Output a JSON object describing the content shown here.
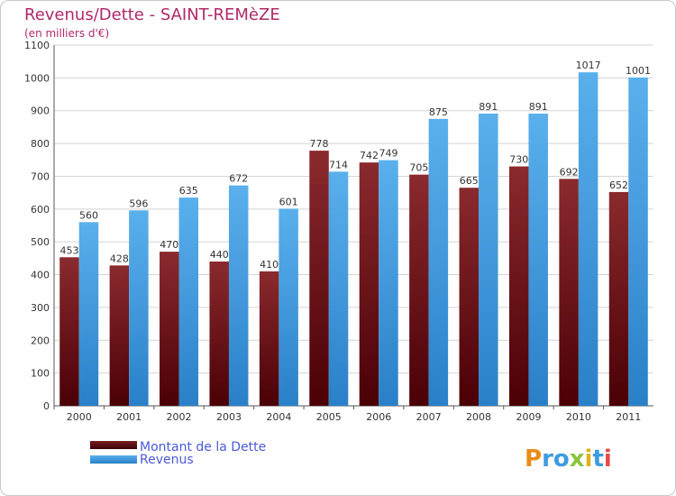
{
  "colors": {
    "debt": "#7a1e22",
    "revenue": "#3d9ce0",
    "title": "#b0286a",
    "legend_text": "#4a5bd8"
  },
  "chart_data": {
    "type": "bar",
    "title": "Revenus/Dette - SAINT-REMèZE",
    "subtitle": "(en milliers d'€)",
    "categories": [
      "2000",
      "2001",
      "2002",
      "2003",
      "2004",
      "2005",
      "2006",
      "2007",
      "2008",
      "2009",
      "2010",
      "2011"
    ],
    "series": [
      {
        "name": "Montant de la Dette",
        "values": [
          453,
          428,
          470,
          440,
          410,
          778,
          742,
          705,
          665,
          730,
          692,
          652
        ]
      },
      {
        "name": "Revenus",
        "values": [
          560,
          596,
          635,
          672,
          601,
          714,
          749,
          875,
          891,
          891,
          1017,
          1001
        ]
      }
    ],
    "ylim": [
      0,
      1100
    ],
    "yticks": [
      "0",
      "100",
      "200",
      "300",
      "400",
      "500",
      "600",
      "700",
      "800",
      "900",
      "1000",
      "1100"
    ],
    "grid": true,
    "legend": "bottom-left"
  },
  "logo": {
    "text": "Proxiti"
  }
}
